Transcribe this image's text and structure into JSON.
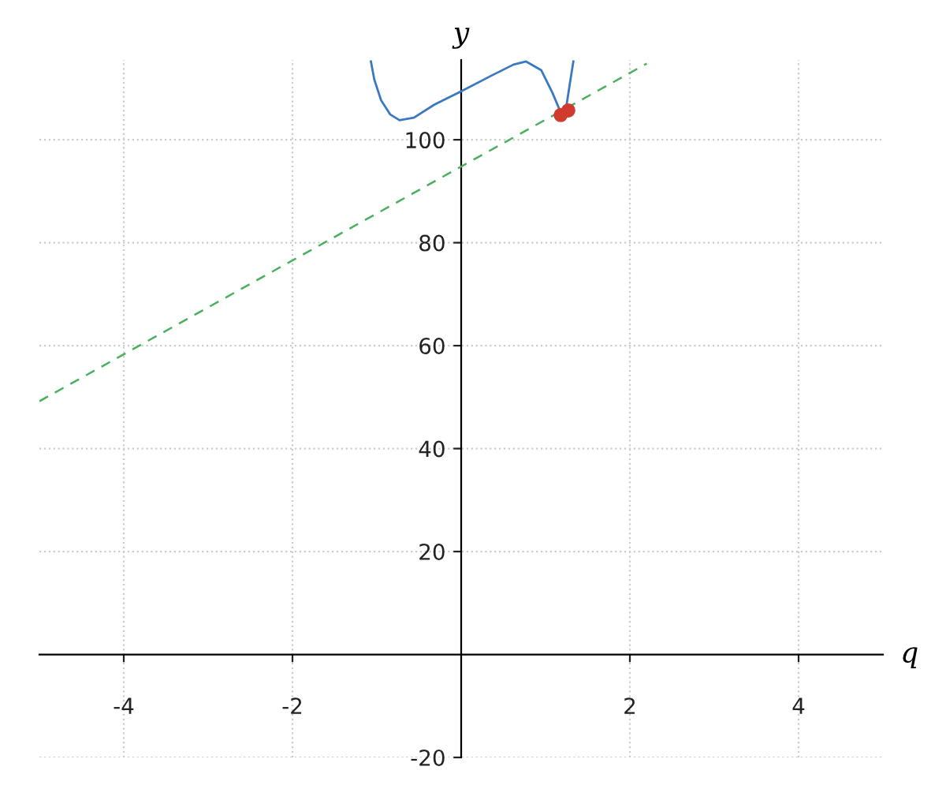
{
  "chart_data": {
    "type": "line",
    "xlabel": "q",
    "ylabel": "y",
    "xlim": [
      -5,
      5
    ],
    "ylim": [
      -20,
      115.5
    ],
    "xticks": [
      -4,
      -2,
      2,
      4
    ],
    "yticks": [
      -20,
      20,
      40,
      60,
      80,
      100
    ],
    "grid": true,
    "series": [
      {
        "color": "#3a78c0",
        "line_style": "solid",
        "x": [
          -1.07,
          -1.03,
          -0.95,
          -0.84,
          -0.73,
          -0.56,
          -0.32,
          0,
          0.34,
          0.62,
          0.77,
          0.95,
          1.08,
          1.18,
          1.25,
          1.29,
          1.33
        ],
        "values": [
          115.2,
          111.7,
          107.7,
          104.9,
          103.8,
          104.3,
          106.8,
          109.4,
          112.3,
          114.6,
          115.2,
          113.5,
          109.2,
          105.3,
          106.8,
          111.1,
          115.2
        ]
      },
      {
        "color": "#4caf5e",
        "line_style": "dashed",
        "x": [
          -5,
          0,
          2.2
        ],
        "values": [
          49.2,
          94.8,
          114.8
        ]
      },
      {
        "type": "scatter",
        "color": "#d03a2f",
        "marker": "circle",
        "x": [
          1.18,
          1.27
        ],
        "values": [
          104.8,
          105.7
        ]
      }
    ]
  }
}
